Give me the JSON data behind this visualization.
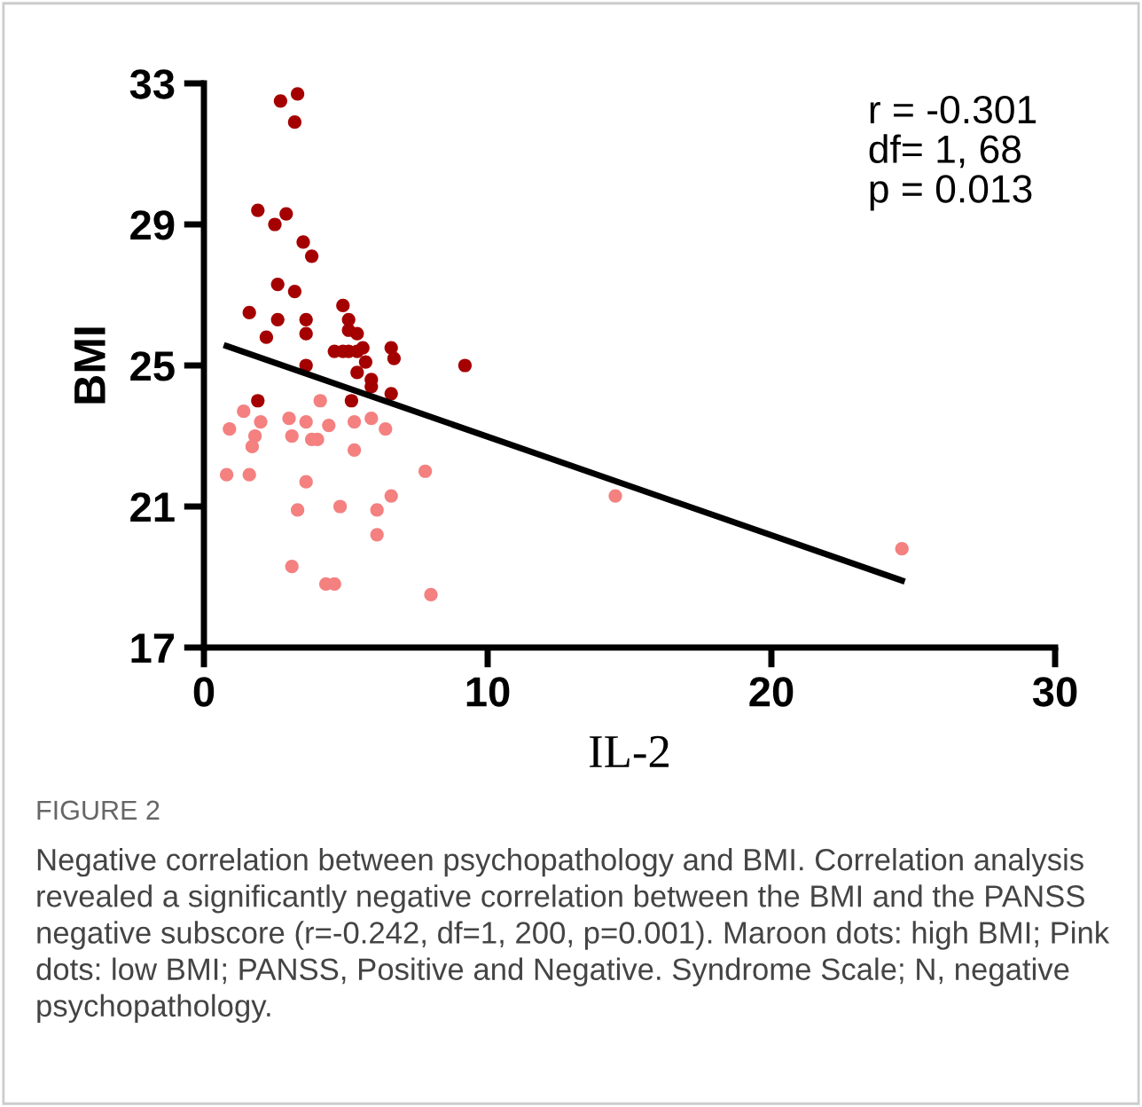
{
  "chart_data": {
    "type": "scatter",
    "xlabel": "IL-2",
    "ylabel": "BMI",
    "xlim": [
      0,
      30
    ],
    "ylim": [
      17,
      33
    ],
    "xticks": [
      0,
      10,
      20,
      30
    ],
    "yticks": [
      17,
      21,
      25,
      29,
      33
    ],
    "grid": false,
    "legend": false,
    "series": [
      {
        "marker": "circle",
        "color": "#a50000",
        "x": [
          2.7,
          3.3,
          3.2,
          1.9,
          2.5,
          2.9,
          3.5,
          3.8,
          2.6,
          3.2,
          1.6,
          2.6,
          3.6,
          4.9,
          5.1,
          2.2,
          3.6,
          5.1,
          5.4,
          4.6,
          4.9,
          5.1,
          5.4,
          5.6,
          6.6,
          6.7,
          3.6,
          5.7,
          9.2,
          5.4,
          5.9,
          5.9,
          6.6,
          5.2,
          1.9
        ],
        "values": [
          32.5,
          32.7,
          31.9,
          29.4,
          29.0,
          29.3,
          28.5,
          28.1,
          27.3,
          27.1,
          26.5,
          26.3,
          26.3,
          26.7,
          26.3,
          25.8,
          25.9,
          26.0,
          25.9,
          25.4,
          25.4,
          25.4,
          25.4,
          25.5,
          25.5,
          25.2,
          25.0,
          25.1,
          25.0,
          24.8,
          24.6,
          24.4,
          24.2,
          24.0,
          24.0
        ]
      },
      {
        "marker": "circle",
        "color": "#f48080",
        "x": [
          1.4,
          0.9,
          2.0,
          1.8,
          1.7,
          3.0,
          3.1,
          3.6,
          3.8,
          4.0,
          4.4,
          5.3,
          4.1,
          5.9,
          6.4,
          5.3,
          0.8,
          1.6,
          3.6,
          7.8,
          3.3,
          4.8,
          6.6,
          6.1,
          6.1,
          3.1,
          4.3,
          4.6,
          8.0,
          14.5,
          24.6
        ],
        "values": [
          23.7,
          23.2,
          23.4,
          23.0,
          22.7,
          23.5,
          23.0,
          23.4,
          22.9,
          22.9,
          23.3,
          23.4,
          24.0,
          23.5,
          23.2,
          22.6,
          21.9,
          21.9,
          21.7,
          22.0,
          20.9,
          21.0,
          21.3,
          20.9,
          20.2,
          19.3,
          18.8,
          18.8,
          18.5,
          21.3,
          19.8
        ]
      },
      {
        "type": "line",
        "marker": "none",
        "color": "#000000",
        "x": [
          0.8,
          24.6
        ],
        "values": [
          25.55,
          18.9
        ]
      }
    ],
    "annotations": [
      "r = -0.301\ndf= 1, 68\np = 0.013",
      "FIGURE 2",
      "Negative correlation between psychopathology and BMI. Correlation analysis revealed a significantly negative correlation between the BMI and the PANSS negative subscore (r=-0.242, df=1, 200, p=0.001). Maroon dots: high BMI; Pink dots: low BMI; PANSS, Positive and Negative. Syndrome Scale; N, negative psychopathology."
    ]
  }
}
